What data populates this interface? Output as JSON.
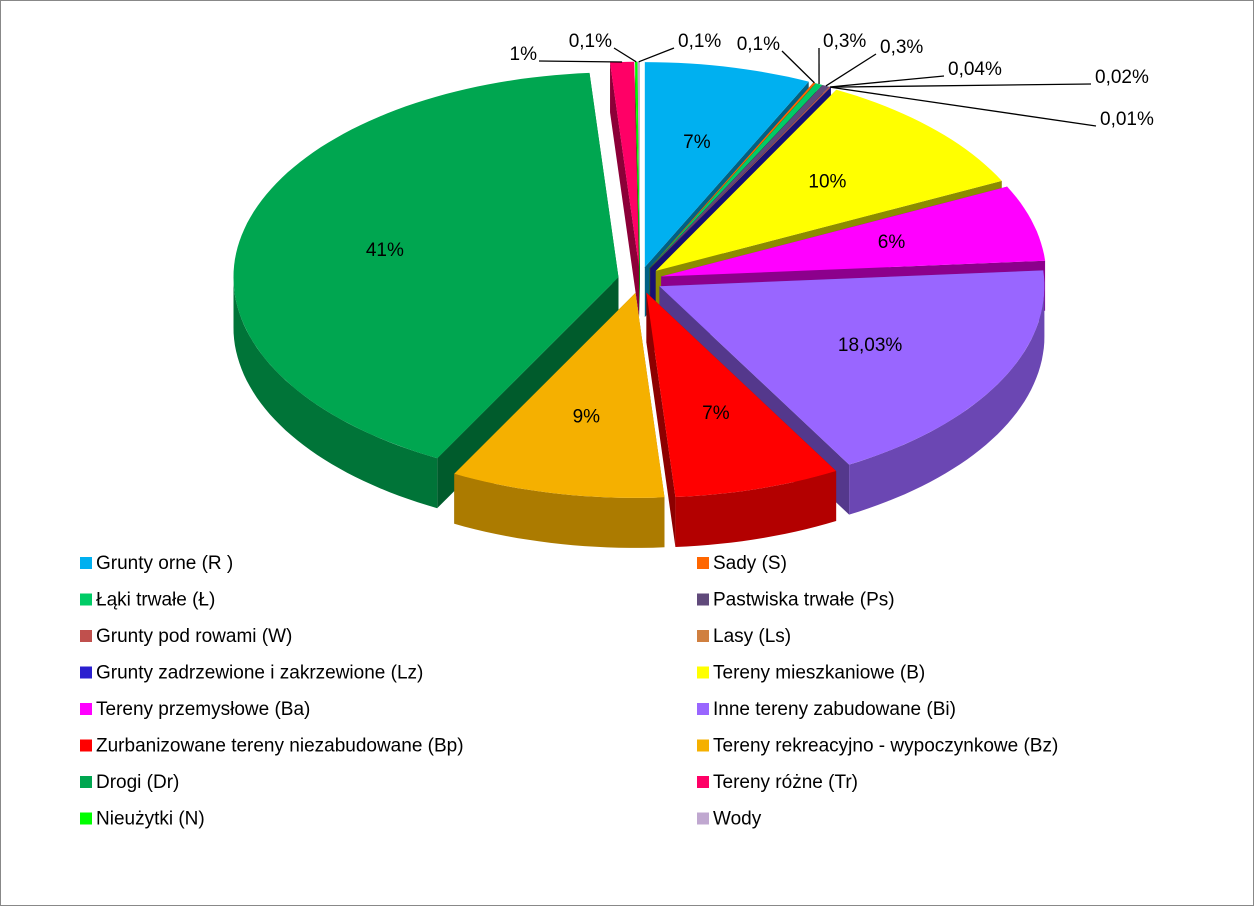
{
  "chart_data": {
    "type": "pie",
    "categories": [
      "Grunty orne (R )",
      "Sady (S)",
      "Łąki trwałe (Ł)",
      "Pastwiska trwałe (Ps)",
      "Grunty pod rowami (W)",
      "Lasy (Ls)",
      "Grunty zadrzewione i zakrzewione (Lz)",
      "Tereny mieszkaniowe (B)",
      "Tereny przemysłowe (Ba)",
      "Inne tereny zabudowane (Bi)",
      "Zurbanizowane tereny niezabudowane (Bp)",
      "Tereny rekreacyjno - wypoczynkowe (Bz)",
      "Drogi (Dr)",
      "Tereny różne (Tr)",
      "Nieużytki (N)",
      "Wody"
    ],
    "values": [
      7,
      0.1,
      0.3,
      0.3,
      0.04,
      0.02,
      0.01,
      10,
      6,
      18.03,
      7,
      9,
      41,
      1,
      0.1,
      0.1
    ],
    "value_labels": [
      "7%",
      "0,1%",
      "0,3%",
      "0,3%",
      "0,04%",
      "0,02%",
      "0,01%",
      "10%",
      "6%",
      "18,03%",
      "7%",
      "9%",
      "41%",
      "1%",
      "0,1%",
      "0,1%"
    ],
    "colors": [
      "#00b0f0",
      "#ff6600",
      "#00cc66",
      "#604a7b",
      "#c0504d",
      "#d08040",
      "#2a1fcf",
      "#ffff00",
      "#ff00ff",
      "#9966ff",
      "#ff0000",
      "#f5b000",
      "#00a650",
      "#ff0066",
      "#00ff00",
      "#c0a8d0"
    ],
    "legend": "bottom"
  }
}
